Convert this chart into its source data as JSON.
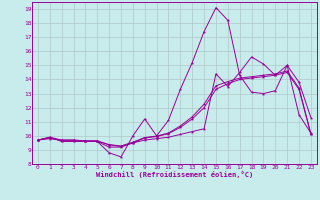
{
  "background_color": "#c8ecec",
  "grid_color": "#b0c8c8",
  "line_color": "#990099",
  "xlabel": "Windchill (Refroidissement éolien,°C)",
  "xlim": [
    -0.5,
    23.5
  ],
  "ylim": [
    8,
    19.5
  ],
  "yticks": [
    8,
    9,
    10,
    11,
    12,
    13,
    14,
    15,
    16,
    17,
    18,
    19
  ],
  "xticks": [
    0,
    1,
    2,
    3,
    4,
    5,
    6,
    7,
    8,
    9,
    10,
    11,
    12,
    13,
    14,
    15,
    16,
    17,
    18,
    19,
    20,
    21,
    22,
    23
  ],
  "line1_x": [
    0,
    1,
    2,
    3,
    4,
    5,
    6,
    7,
    8,
    9,
    10,
    11,
    12,
    13,
    14,
    15,
    16,
    17,
    18,
    19,
    20,
    21,
    22,
    23
  ],
  "line1_y": [
    9.7,
    9.9,
    9.6,
    9.6,
    9.6,
    9.6,
    8.8,
    8.5,
    10.0,
    11.2,
    10.0,
    11.1,
    13.3,
    15.2,
    17.4,
    19.1,
    18.2,
    14.3,
    13.1,
    13.0,
    13.2,
    15.0,
    13.8,
    11.3
  ],
  "line2_x": [
    0,
    1,
    2,
    3,
    4,
    5,
    6,
    7,
    8,
    9,
    10,
    11,
    12,
    13,
    14,
    15,
    16,
    17,
    18,
    19,
    20,
    21,
    22,
    23
  ],
  "line2_y": [
    9.7,
    9.9,
    9.7,
    9.7,
    9.6,
    9.6,
    9.2,
    9.2,
    9.5,
    9.7,
    9.8,
    9.9,
    10.1,
    10.3,
    10.5,
    14.4,
    13.5,
    14.5,
    15.6,
    15.1,
    14.3,
    15.0,
    11.5,
    10.2
  ],
  "line3_x": [
    0,
    1,
    2,
    3,
    4,
    5,
    6,
    7,
    8,
    9,
    10,
    11,
    12,
    13,
    14,
    15,
    16,
    17,
    18,
    19,
    20,
    21,
    22,
    23
  ],
  "line3_y": [
    9.7,
    9.8,
    9.7,
    9.7,
    9.65,
    9.65,
    9.35,
    9.25,
    9.5,
    9.85,
    9.95,
    10.15,
    10.6,
    11.2,
    12.0,
    13.3,
    13.7,
    14.0,
    14.1,
    14.2,
    14.3,
    14.5,
    13.3,
    10.1
  ],
  "line4_x": [
    0,
    1,
    2,
    3,
    4,
    5,
    6,
    7,
    8,
    9,
    10,
    11,
    12,
    13,
    14,
    15,
    16,
    17,
    18,
    19,
    20,
    21,
    22,
    23
  ],
  "line4_y": [
    9.7,
    9.85,
    9.65,
    9.65,
    9.63,
    9.63,
    9.38,
    9.28,
    9.55,
    9.88,
    9.98,
    10.2,
    10.7,
    11.35,
    12.25,
    13.55,
    13.85,
    14.1,
    14.2,
    14.3,
    14.4,
    14.6,
    13.4,
    10.15
  ]
}
